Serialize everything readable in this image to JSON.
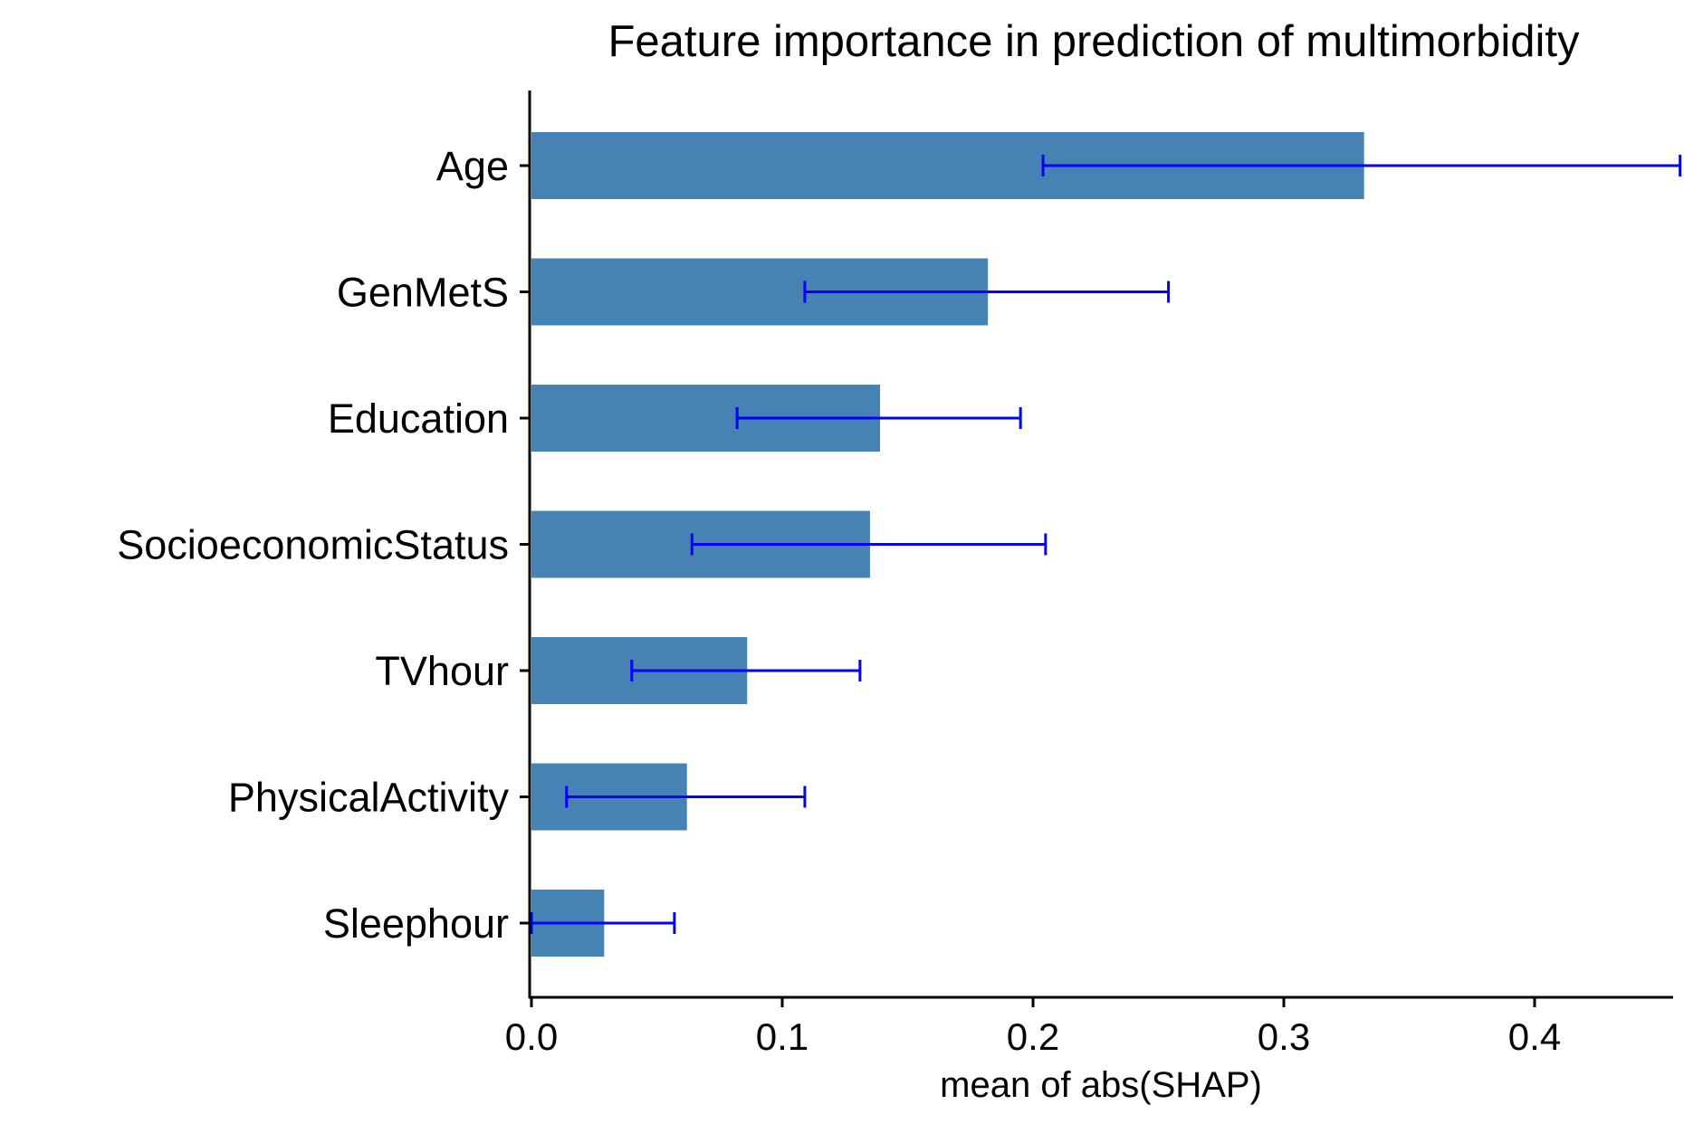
{
  "chart_data": {
    "type": "bar",
    "orientation": "horizontal",
    "title": "Feature importance in prediction of multimorbidity",
    "xlabel": "mean of abs(SHAP)",
    "ylabel": "",
    "categories": [
      "Age",
      "GenMetS",
      "Education",
      "SocioeconomicStatus",
      "TVhour",
      "PhysicalActivity",
      "Sleephour"
    ],
    "values": [
      0.332,
      0.182,
      0.139,
      0.135,
      0.086,
      0.062,
      0.029
    ],
    "error_low": [
      0.204,
      0.109,
      0.082,
      0.064,
      0.04,
      0.014,
      0.0
    ],
    "error_high": [
      0.458,
      0.254,
      0.195,
      0.205,
      0.131,
      0.109,
      0.057
    ],
    "xlim": [
      0,
      0.458
    ],
    "xticks": [
      0.0,
      0.1,
      0.2,
      0.3,
      0.4
    ],
    "xtick_labels": [
      "0.0",
      "0.1",
      "0.2",
      "0.3",
      "0.4"
    ],
    "grid": false,
    "legend": "none",
    "colors": {
      "bar": "#4682B4",
      "error_bar": "#0000FF",
      "axis": "#000000"
    }
  }
}
